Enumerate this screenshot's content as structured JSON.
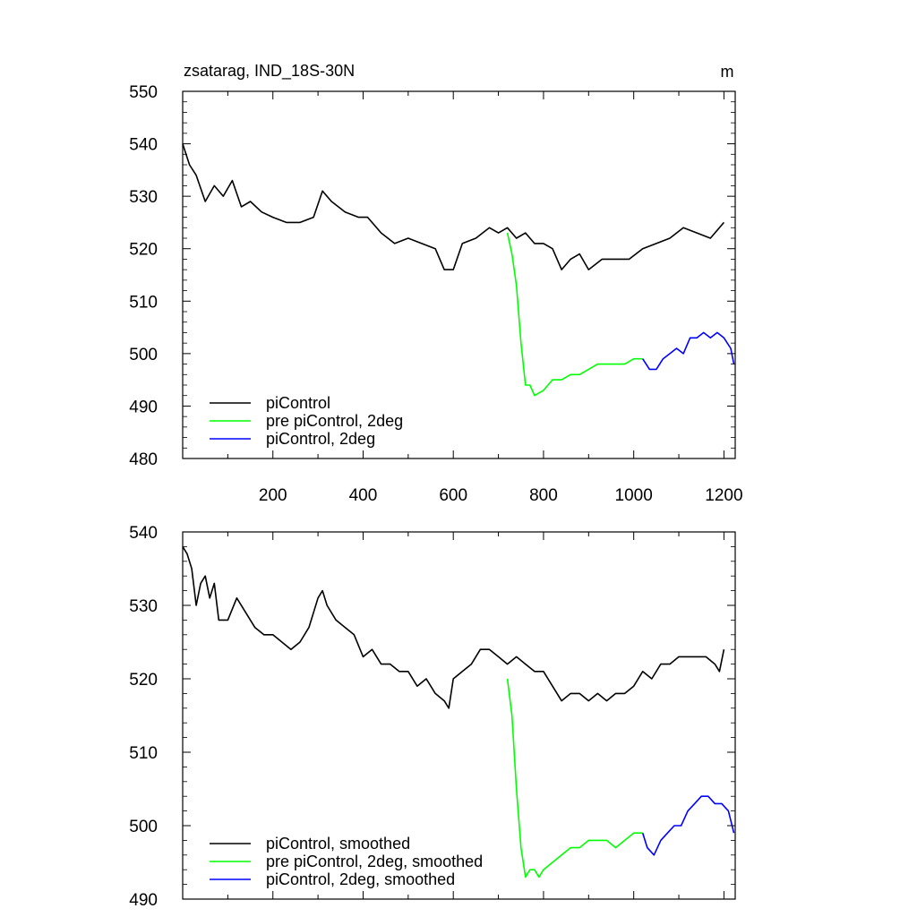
{
  "chart_data": [
    {
      "type": "line",
      "title": "zsatarag, IND_18S-30N",
      "units": "m",
      "xlim": [
        0,
        1225
      ],
      "ylim": [
        480,
        550
      ],
      "x_ticks": [
        "200",
        "400",
        "600",
        "800",
        "1000",
        "1200"
      ],
      "y_ticks": [
        "480",
        "490",
        "500",
        "510",
        "520",
        "530",
        "540",
        "550"
      ],
      "legend_position": "bottom-left",
      "series": [
        {
          "name": "piControl",
          "color": "#000000",
          "x": [
            0,
            15,
            30,
            50,
            70,
            90,
            110,
            130,
            150,
            175,
            200,
            230,
            260,
            290,
            310,
            330,
            360,
            390,
            410,
            440,
            470,
            500,
            530,
            560,
            580,
            600,
            620,
            650,
            680,
            700,
            720,
            740,
            760,
            780,
            800,
            820,
            840,
            860,
            880,
            900,
            930,
            960,
            990,
            1020,
            1050,
            1080,
            1110,
            1140,
            1170,
            1200
          ],
          "y": [
            540,
            536,
            534,
            529,
            532,
            530,
            533,
            528,
            529,
            527,
            526,
            525,
            525,
            526,
            531,
            529,
            527,
            526,
            526,
            523,
            521,
            522,
            521,
            520,
            516,
            516,
            521,
            522,
            524,
            523,
            524,
            522,
            523,
            521,
            521,
            520,
            516,
            518,
            519,
            516,
            518,
            518,
            518,
            520,
            521,
            522,
            524,
            523,
            522,
            525
          ]
        },
        {
          "name": "pre piControl, 2deg",
          "color": "#00ff00",
          "x": [
            720,
            730,
            740,
            750,
            760,
            770,
            780,
            800,
            820,
            840,
            860,
            880,
            900,
            920,
            940,
            960,
            980,
            1000,
            1020
          ],
          "y": [
            523,
            519,
            513,
            502,
            494,
            494,
            492,
            493,
            495,
            495,
            496,
            496,
            497,
            498,
            498,
            498,
            498,
            499,
            499
          ]
        },
        {
          "name": "piControl, 2deg",
          "color": "#0000ff",
          "x": [
            1020,
            1035,
            1050,
            1065,
            1080,
            1095,
            1110,
            1125,
            1140,
            1155,
            1170,
            1185,
            1200,
            1215,
            1222
          ],
          "y": [
            499,
            497,
            497,
            499,
            500,
            501,
            500,
            503,
            503,
            504,
            503,
            504,
            503,
            501,
            498
          ]
        }
      ]
    },
    {
      "type": "line",
      "title": "",
      "xlim": [
        0,
        1225
      ],
      "ylim": [
        490,
        540
      ],
      "y_ticks": [
        "490",
        "500",
        "510",
        "520",
        "530",
        "540"
      ],
      "legend_position": "bottom-left",
      "series": [
        {
          "name": "piControl, smoothed",
          "color": "#000000",
          "x": [
            0,
            10,
            20,
            30,
            40,
            50,
            60,
            70,
            80,
            100,
            120,
            140,
            160,
            180,
            200,
            220,
            240,
            260,
            280,
            300,
            310,
            320,
            340,
            360,
            380,
            400,
            420,
            440,
            460,
            480,
            500,
            520,
            540,
            560,
            580,
            590,
            600,
            620,
            640,
            660,
            680,
            700,
            720,
            740,
            760,
            780,
            800,
            820,
            840,
            860,
            880,
            900,
            920,
            940,
            960,
            980,
            1000,
            1020,
            1040,
            1060,
            1080,
            1100,
            1120,
            1140,
            1160,
            1180,
            1190,
            1200
          ],
          "y": [
            538,
            537,
            535,
            530,
            533,
            534,
            531,
            533,
            528,
            528,
            531,
            529,
            527,
            526,
            526,
            525,
            524,
            525,
            527,
            531,
            532,
            530,
            528,
            527,
            526,
            523,
            524,
            522,
            522,
            521,
            521,
            519,
            520,
            518,
            517,
            516,
            520,
            521,
            522,
            524,
            524,
            523,
            522,
            523,
            522,
            521,
            521,
            519,
            517,
            518,
            518,
            517,
            518,
            517,
            518,
            518,
            519,
            521,
            520,
            522,
            522,
            523,
            523,
            523,
            523,
            522,
            521,
            524
          ]
        },
        {
          "name": "pre piControl, 2deg, smoothed",
          "color": "#00ff00",
          "x": [
            720,
            730,
            740,
            750,
            760,
            770,
            780,
            790,
            800,
            820,
            840,
            860,
            880,
            900,
            920,
            940,
            960,
            980,
            1000,
            1020
          ],
          "y": [
            520,
            515,
            505,
            497,
            493,
            494,
            494,
            493,
            494,
            495,
            496,
            497,
            497,
            498,
            498,
            498,
            497,
            498,
            499,
            499
          ]
        },
        {
          "name": "piControl, 2deg, smoothed",
          "color": "#0000ff",
          "x": [
            1020,
            1030,
            1045,
            1060,
            1075,
            1090,
            1105,
            1120,
            1135,
            1150,
            1165,
            1180,
            1195,
            1210,
            1222
          ],
          "y": [
            499,
            497,
            496,
            498,
            499,
            500,
            500,
            502,
            503,
            504,
            504,
            503,
            503,
            502,
            499
          ]
        }
      ]
    }
  ]
}
